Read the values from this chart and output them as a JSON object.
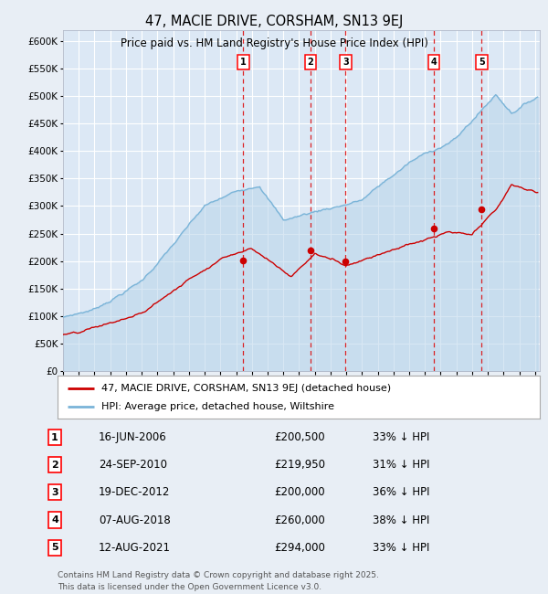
{
  "title": "47, MACIE DRIVE, CORSHAM, SN13 9EJ",
  "subtitle": "Price paid vs. HM Land Registry's House Price Index (HPI)",
  "background_color": "#e8eef5",
  "plot_bg_color": "#dce8f5",
  "grid_color": "#ffffff",
  "hpi_color": "#7ab4d8",
  "hpi_fill_color": "#b8d4ea",
  "price_color": "#cc0000",
  "vline_color": "#dd0000",
  "transactions": [
    {
      "label": "1",
      "date_year": 2006.46,
      "price": 200500
    },
    {
      "label": "2",
      "date_year": 2010.73,
      "price": 219950
    },
    {
      "label": "3",
      "date_year": 2012.96,
      "price": 200000
    },
    {
      "label": "4",
      "date_year": 2018.59,
      "price": 260000
    },
    {
      "label": "5",
      "date_year": 2021.61,
      "price": 294000
    }
  ],
  "legend_label_red": "47, MACIE DRIVE, CORSHAM, SN13 9EJ (detached house)",
  "legend_label_blue": "HPI: Average price, detached house, Wiltshire",
  "table_rows": [
    {
      "num": "1",
      "date": "16-JUN-2006",
      "price": "£200,500",
      "note": "33% ↓ HPI"
    },
    {
      "num": "2",
      "date": "24-SEP-2010",
      "price": "£219,950",
      "note": "31% ↓ HPI"
    },
    {
      "num": "3",
      "date": "19-DEC-2012",
      "price": "£200,000",
      "note": "36% ↓ HPI"
    },
    {
      "num": "4",
      "date": "07-AUG-2018",
      "price": "£260,000",
      "note": "38% ↓ HPI"
    },
    {
      "num": "5",
      "date": "12-AUG-2021",
      "price": "£294,000",
      "note": "33% ↓ HPI"
    }
  ],
  "footer": "Contains HM Land Registry data © Crown copyright and database right 2025.\nThis data is licensed under the Open Government Licence v3.0.",
  "ylim": [
    0,
    620000
  ],
  "yticks": [
    0,
    50000,
    100000,
    150000,
    200000,
    250000,
    300000,
    350000,
    400000,
    450000,
    500000,
    550000,
    600000
  ],
  "ytick_labels": [
    "£0",
    "£50K",
    "£100K",
    "£150K",
    "£200K",
    "£250K",
    "£300K",
    "£350K",
    "£400K",
    "£450K",
    "£500K",
    "£550K",
    "£600K"
  ]
}
